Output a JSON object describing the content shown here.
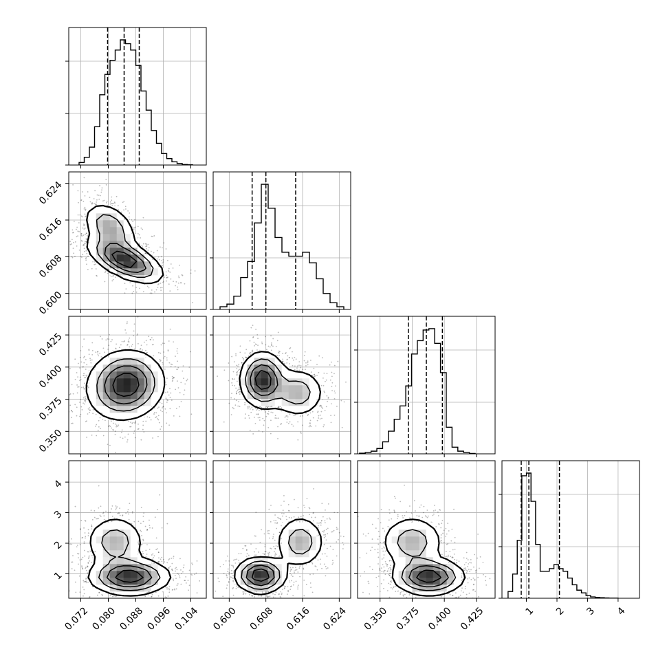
{
  "chart_data": {
    "type": "corner",
    "title": "",
    "parameters": [
      "",
      "",
      "",
      ""
    ],
    "quantiles": [
      0.16,
      0.5,
      0.84
    ],
    "diagonal": [
      {
        "type": "histogram",
        "xlim": [
          0.0685,
          0.1085
        ],
        "bin_edges": [
          0.0715,
          0.073,
          0.0745,
          0.076,
          0.0775,
          0.079,
          0.0805,
          0.082,
          0.0835,
          0.085,
          0.0865,
          0.088,
          0.0895,
          0.091,
          0.0925,
          0.094,
          0.0955,
          0.097,
          0.0985,
          0.1,
          0.1015,
          0.103,
          0.1045
        ],
        "counts": [
          0.02,
          0.06,
          0.14,
          0.3,
          0.55,
          0.71,
          0.82,
          0.9,
          0.98,
          0.95,
          0.9,
          0.78,
          0.58,
          0.43,
          0.27,
          0.17,
          0.09,
          0.05,
          0.025,
          0.012,
          0.004,
          0.002
        ],
        "quantile_values": [
          0.0798,
          0.0846,
          0.089
        ],
        "xticks": [
          "0.072",
          "0.080",
          "0.088",
          "0.096",
          "0.104"
        ],
        "xtick_values": [
          0.072,
          0.08,
          0.088,
          0.096,
          0.104
        ]
      },
      {
        "type": "histogram",
        "xlim": [
          0.5965,
          0.6265
        ],
        "bin_edges": [
          0.598,
          0.5995,
          0.601,
          0.6025,
          0.604,
          0.6055,
          0.607,
          0.6085,
          0.61,
          0.6115,
          0.613,
          0.6145,
          0.616,
          0.6175,
          0.619,
          0.6205,
          0.622,
          0.6235,
          0.625
        ],
        "counts": [
          0.02,
          0.04,
          0.1,
          0.24,
          0.36,
          0.65,
          0.94,
          0.76,
          0.54,
          0.43,
          0.4,
          0.4,
          0.43,
          0.35,
          0.23,
          0.12,
          0.05,
          0.02
        ],
        "quantile_values": [
          0.605,
          0.608,
          0.6145
        ],
        "xticks": [
          "0.600",
          "0.608",
          "0.616",
          "0.624"
        ],
        "xtick_values": [
          0.6,
          0.608,
          0.616,
          0.624
        ]
      },
      {
        "type": "histogram",
        "xlim": [
          0.3325,
          0.4395
        ],
        "bin_edges": [
          0.334,
          0.3385,
          0.343,
          0.3475,
          0.352,
          0.3565,
          0.361,
          0.3655,
          0.37,
          0.3745,
          0.379,
          0.3835,
          0.388,
          0.3925,
          0.397,
          0.4015,
          0.406,
          0.4105,
          0.415,
          0.4195,
          0.424
        ],
        "counts": [
          0.005,
          0.01,
          0.02,
          0.04,
          0.09,
          0.17,
          0.26,
          0.36,
          0.51,
          0.75,
          0.85,
          0.93,
          0.94,
          0.83,
          0.61,
          0.2,
          0.05,
          0.02,
          0.01,
          0.003
        ],
        "quantile_values": [
          0.372,
          0.386,
          0.3985
        ],
        "xticks": [
          "0.350",
          "0.375",
          "0.400",
          "0.425"
        ],
        "xtick_values": [
          0.35,
          0.375,
          0.4,
          0.425
        ]
      },
      {
        "type": "histogram",
        "xlim": [
          0.2,
          4.7
        ],
        "bin_edges": [
          0.4,
          0.55,
          0.7,
          0.85,
          1.0,
          1.15,
          1.3,
          1.45,
          1.6,
          1.75,
          1.9,
          2.05,
          2.2,
          2.35,
          2.5,
          2.65,
          2.8,
          2.95,
          3.1,
          3.25,
          3.4,
          3.55,
          3.7,
          3.85,
          4.0
        ],
        "counts": [
          0.05,
          0.18,
          0.43,
          0.91,
          0.93,
          0.72,
          0.4,
          0.2,
          0.2,
          0.22,
          0.25,
          0.22,
          0.2,
          0.15,
          0.1,
          0.06,
          0.04,
          0.02,
          0.01,
          0.006,
          0.004,
          0.002,
          0.001,
          0.001
        ],
        "quantile_values": [
          0.83,
          1.08,
          2.08
        ],
        "xticks": [
          "1",
          "2",
          "3",
          "4"
        ],
        "xtick_values": [
          1,
          2,
          3,
          4
        ]
      }
    ],
    "yticks": [
      null,
      {
        "labels": [
          "0.600",
          "0.608",
          "0.616",
          "0.624"
        ],
        "values": [
          0.6,
          0.608,
          0.616,
          0.624
        ]
      },
      {
        "labels": [
          "0.350",
          "0.375",
          "0.400",
          "0.425"
        ],
        "values": [
          0.35,
          0.375,
          0.4,
          0.425
        ]
      },
      {
        "labels": [
          "1",
          "2",
          "3",
          "4"
        ],
        "values": [
          1,
          2,
          3,
          4
        ]
      }
    ],
    "pairs": [
      {
        "row": 1,
        "col": 0,
        "modes": [
          {
            "x": 0.085,
            "y": 0.6072,
            "weight": 1.0,
            "sx": 0.0055,
            "sy": 0.0025,
            "rho": -0.6
          },
          {
            "x": 0.0805,
            "y": 0.6145,
            "weight": 0.55,
            "sx": 0.004,
            "sy": 0.0028,
            "rho": -0.4
          }
        ]
      },
      {
        "row": 2,
        "col": 0,
        "modes": [
          {
            "x": 0.086,
            "y": 0.389,
            "weight": 1.0,
            "sx": 0.0055,
            "sy": 0.013,
            "rho": 0.0
          },
          {
            "x": 0.083,
            "y": 0.38,
            "weight": 0.5,
            "sx": 0.0055,
            "sy": 0.013,
            "rho": 0.0
          }
        ]
      },
      {
        "row": 2,
        "col": 1,
        "modes": [
          {
            "x": 0.6073,
            "y": 0.39,
            "weight": 1.0,
            "sx": 0.0025,
            "sy": 0.011,
            "rho": 0.0
          },
          {
            "x": 0.615,
            "y": 0.38,
            "weight": 0.5,
            "sx": 0.003,
            "sy": 0.01,
            "rho": 0.0
          }
        ]
      },
      {
        "row": 3,
        "col": 0,
        "modes": [
          {
            "x": 0.0862,
            "y": 0.9,
            "weight": 1.0,
            "sx": 0.006,
            "sy": 0.3,
            "rho": 0.0
          },
          {
            "x": 0.082,
            "y": 2.05,
            "weight": 0.5,
            "sx": 0.0045,
            "sy": 0.45,
            "rho": 0.0
          }
        ]
      },
      {
        "row": 3,
        "col": 1,
        "modes": [
          {
            "x": 0.6068,
            "y": 0.95,
            "weight": 1.0,
            "sx": 0.0028,
            "sy": 0.3,
            "rho": 0.0
          },
          {
            "x": 0.6155,
            "y": 2.05,
            "weight": 0.5,
            "sx": 0.0028,
            "sy": 0.45,
            "rho": 0.0
          }
        ]
      },
      {
        "row": 3,
        "col": 2,
        "modes": [
          {
            "x": 0.388,
            "y": 0.9,
            "weight": 1.0,
            "sx": 0.014,
            "sy": 0.3,
            "rho": 0.0
          },
          {
            "x": 0.375,
            "y": 2.05,
            "weight": 0.5,
            "sx": 0.013,
            "sy": 0.45,
            "rho": 0.0
          }
        ]
      }
    ],
    "ylims": [
      null,
      [
        0.5965,
        0.6265
      ],
      [
        0.3325,
        0.4395
      ],
      [
        0.2,
        4.7
      ]
    ],
    "grid": true,
    "legend": "none",
    "colors": {
      "line": "#000000",
      "grid": "#b0b0b0",
      "scatter": "#000000",
      "background": "#ffffff"
    }
  }
}
